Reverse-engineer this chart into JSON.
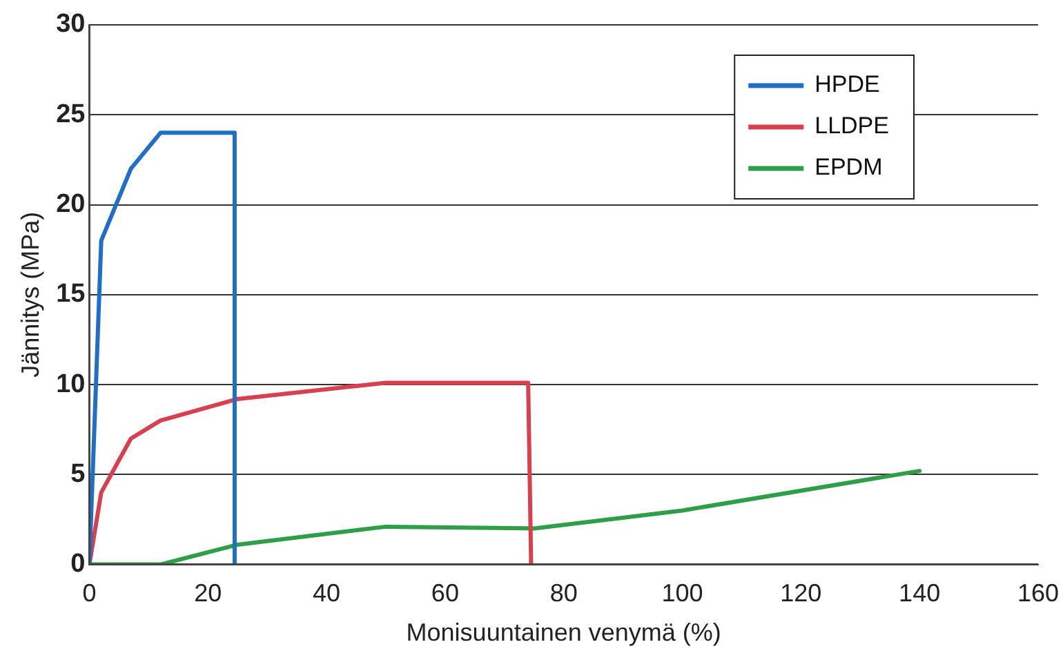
{
  "chart_data": {
    "type": "line",
    "xlabel": "Monisuuntainen venymä (%)",
    "ylabel": "Jännitys (MPa)",
    "xlim": [
      0,
      160
    ],
    "xticks": [
      0,
      20,
      40,
      60,
      80,
      100,
      120,
      140,
      160
    ],
    "ylim": [
      0,
      30
    ],
    "yticks": [
      0,
      5,
      10,
      15,
      20,
      25,
      30
    ],
    "grid": "y",
    "legend": "top right",
    "marker": "none",
    "line_style": "solid",
    "series": [
      {
        "name": "HPDE",
        "color": "#1f6fc8",
        "x": [
          0,
          2,
          7,
          12,
          24.5,
          24.5
        ],
        "values": [
          0,
          18,
          22,
          24,
          24,
          0
        ]
      },
      {
        "name": "LLDPE",
        "color": "#d8404f",
        "x": [
          0,
          2,
          7,
          12,
          25,
          50,
          74,
          74.5
        ],
        "values": [
          0,
          4,
          7,
          8,
          9.2,
          10.1,
          10.1,
          0
        ]
      },
      {
        "name": "EPDM",
        "color": "#2e9e48",
        "x": [
          0,
          12,
          25,
          50,
          75,
          100,
          140
        ],
        "values": [
          0,
          0,
          1.1,
          2.1,
          2,
          3,
          5.2
        ]
      }
    ]
  }
}
